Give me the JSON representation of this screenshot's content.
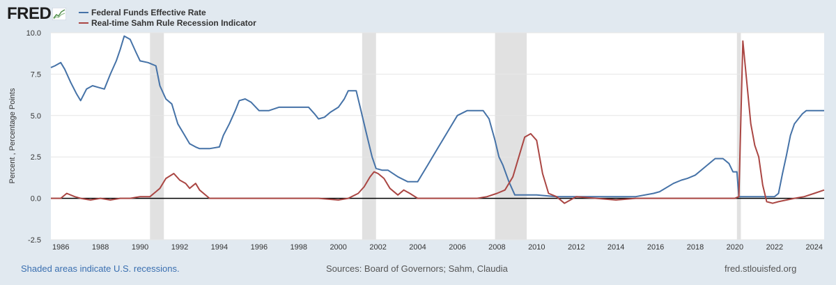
{
  "brand": {
    "name": "FRED",
    "logo_icon": "fred-chart-logo-icon"
  },
  "legend": {
    "items": [
      {
        "label": "Federal Funds Effective Rate",
        "color": "#4572a7"
      },
      {
        "label": "Real-time Sahm Rule Recession Indicator",
        "color": "#aa4643"
      }
    ]
  },
  "footer": {
    "note": "Shaded areas indicate U.S. recessions.",
    "sources": "Sources: Board of Governors; Sahm, Claudia",
    "site": "fred.stlouisfed.org"
  },
  "colors": {
    "background": "#e1e9f0",
    "plot_background": "#ffffff",
    "recession_shade": "#e1e1e1",
    "zero_line": "#000000"
  },
  "chart_data": {
    "type": "line",
    "title": "",
    "xlabel": "",
    "ylabel": "Percent , Percentage Points",
    "xlim": [
      1985.5,
      2024.5
    ],
    "ylim": [
      -2.5,
      10.0
    ],
    "grid": true,
    "legend_position": "top-left",
    "x_ticks": [
      1986,
      1988,
      1990,
      1992,
      1994,
      1996,
      1998,
      2000,
      2002,
      2004,
      2006,
      2008,
      2010,
      2012,
      2014,
      2016,
      2018,
      2020,
      2022,
      2024
    ],
    "x_tick_labels": [
      "1986",
      "1988",
      "1990",
      "1992",
      "1994",
      "1996",
      "1998",
      "2000",
      "2002",
      "2004",
      "2006",
      "2008",
      "2010",
      "2012",
      "2014",
      "2016",
      "2018",
      "2020",
      "2022",
      "2024"
    ],
    "y_ticks": [
      -2.5,
      0.0,
      2.5,
      5.0,
      7.5,
      10.0
    ],
    "y_tick_labels": [
      "-2.5",
      "0.0",
      "2.5",
      "5.0",
      "7.5",
      "10.0"
    ],
    "recessions": [
      [
        1990.5,
        1991.2
      ],
      [
        2001.2,
        2001.9
      ],
      [
        2007.9,
        2009.5
      ],
      [
        2020.1,
        2020.3
      ]
    ],
    "series": [
      {
        "name": "Federal Funds Effective Rate",
        "color": "#4572a7",
        "x": [
          1985.5,
          1985.7,
          1986.0,
          1986.2,
          1986.5,
          1986.8,
          1987.0,
          1987.3,
          1987.6,
          1987.9,
          1988.2,
          1988.5,
          1988.8,
          1989.0,
          1989.2,
          1989.5,
          1989.8,
          1990.0,
          1990.4,
          1990.8,
          1991.0,
          1991.3,
          1991.6,
          1991.9,
          1992.2,
          1992.5,
          1992.8,
          1993.0,
          1993.5,
          1994.0,
          1994.2,
          1994.5,
          1994.8,
          1995.0,
          1995.3,
          1995.6,
          1996.0,
          1996.5,
          1997.0,
          1997.5,
          1998.0,
          1998.5,
          1998.8,
          1999.0,
          1999.3,
          1999.6,
          2000.0,
          2000.3,
          2000.5,
          2000.9,
          2001.1,
          2001.4,
          2001.7,
          2001.9,
          2002.2,
          2002.5,
          2003.0,
          2003.5,
          2004.0,
          2004.5,
          2005.0,
          2005.5,
          2006.0,
          2006.5,
          2006.8,
          2007.3,
          2007.6,
          2007.9,
          2008.1,
          2008.3,
          2008.6,
          2008.9,
          2009.0,
          2009.5,
          2010.0,
          2011.0,
          2012.0,
          2013.0,
          2014.0,
          2015.0,
          2015.9,
          2016.2,
          2016.9,
          2017.3,
          2017.6,
          2018.0,
          2018.5,
          2019.0,
          2019.4,
          2019.7,
          2019.9,
          2020.1,
          2020.2,
          2020.4,
          2021.0,
          2022.0,
          2022.2,
          2022.4,
          2022.6,
          2022.8,
          2023.0,
          2023.4,
          2023.6,
          2024.0,
          2024.5
        ],
        "values": [
          7.9,
          8.0,
          8.2,
          7.8,
          7.0,
          6.3,
          5.9,
          6.6,
          6.8,
          6.7,
          6.6,
          7.5,
          8.3,
          9.0,
          9.8,
          9.6,
          8.8,
          8.3,
          8.2,
          8.0,
          6.8,
          6.0,
          5.7,
          4.5,
          3.9,
          3.3,
          3.1,
          3.0,
          3.0,
          3.1,
          3.8,
          4.5,
          5.3,
          5.9,
          6.0,
          5.8,
          5.3,
          5.3,
          5.5,
          5.5,
          5.5,
          5.5,
          5.1,
          4.8,
          4.9,
          5.2,
          5.5,
          6.0,
          6.5,
          6.5,
          5.5,
          4.0,
          2.5,
          1.8,
          1.7,
          1.7,
          1.3,
          1.0,
          1.0,
          2.0,
          3.0,
          4.0,
          5.0,
          5.3,
          5.3,
          5.3,
          4.8,
          3.5,
          2.5,
          2.0,
          1.0,
          0.2,
          0.2,
          0.2,
          0.2,
          0.1,
          0.1,
          0.1,
          0.1,
          0.1,
          0.3,
          0.4,
          0.9,
          1.1,
          1.2,
          1.4,
          1.9,
          2.4,
          2.4,
          2.1,
          1.6,
          1.6,
          0.1,
          0.1,
          0.1,
          0.1,
          0.3,
          1.5,
          2.6,
          3.8,
          4.5,
          5.1,
          5.3,
          5.3,
          5.3
        ]
      },
      {
        "name": "Real-time Sahm Rule Recession Indicator",
        "color": "#aa4643",
        "x": [
          1985.5,
          1986.0,
          1986.3,
          1986.7,
          1987.0,
          1987.5,
          1988.0,
          1988.5,
          1989.0,
          1989.5,
          1990.0,
          1990.5,
          1990.8,
          1991.0,
          1991.3,
          1991.7,
          1992.0,
          1992.3,
          1992.5,
          1992.8,
          1993.0,
          1993.5,
          1994.0,
          1995.0,
          1996.0,
          1997.0,
          1998.0,
          1999.0,
          2000.0,
          2000.5,
          2001.0,
          2001.3,
          2001.6,
          2001.8,
          2002.0,
          2002.3,
          2002.6,
          2003.0,
          2003.3,
          2003.6,
          2004.0,
          2005.0,
          2006.0,
          2007.0,
          2007.5,
          2008.0,
          2008.4,
          2008.8,
          2009.1,
          2009.4,
          2009.7,
          2010.0,
          2010.3,
          2010.6,
          2011.0,
          2011.4,
          2012.0,
          2013.0,
          2014.0,
          2015.0,
          2016.0,
          2017.0,
          2018.0,
          2019.0,
          2020.0,
          2020.2,
          2020.4,
          2020.6,
          2020.8,
          2021.0,
          2021.2,
          2021.4,
          2021.6,
          2021.9,
          2022.2,
          2022.6,
          2023.0,
          2023.5,
          2024.0,
          2024.5
        ],
        "values": [
          0.0,
          0.0,
          0.3,
          0.1,
          0.0,
          -0.1,
          0.0,
          -0.1,
          0.0,
          0.0,
          0.1,
          0.1,
          0.4,
          0.6,
          1.2,
          1.5,
          1.1,
          0.9,
          0.6,
          0.9,
          0.5,
          0.0,
          0.0,
          0.0,
          0.0,
          0.0,
          0.0,
          0.0,
          -0.1,
          0.0,
          0.3,
          0.7,
          1.3,
          1.6,
          1.5,
          1.2,
          0.6,
          0.2,
          0.5,
          0.3,
          0.0,
          0.0,
          0.0,
          0.0,
          0.1,
          0.3,
          0.5,
          1.3,
          2.5,
          3.7,
          3.9,
          3.5,
          1.5,
          0.3,
          0.1,
          -0.3,
          0.1,
          0.0,
          -0.1,
          0.0,
          0.0,
          0.0,
          0.0,
          0.0,
          0.0,
          0.1,
          9.5,
          7.0,
          4.5,
          3.2,
          2.5,
          0.8,
          -0.2,
          -0.3,
          -0.2,
          -0.1,
          0.0,
          0.1,
          0.3,
          0.5
        ]
      }
    ]
  }
}
